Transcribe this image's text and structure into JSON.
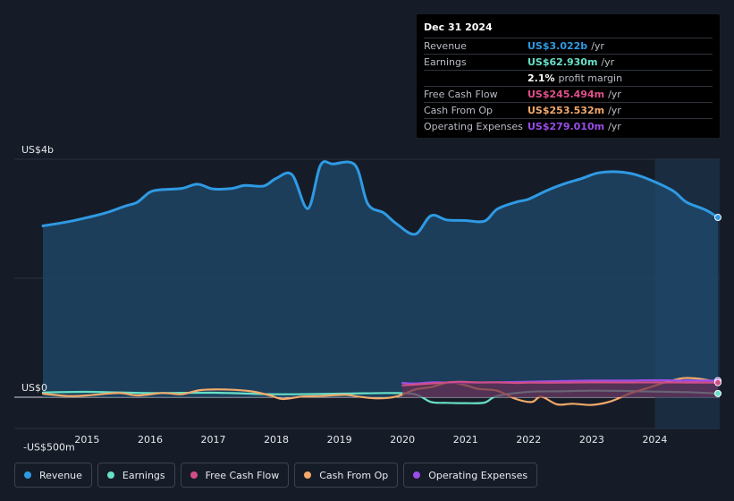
{
  "tooltip": {
    "date": "Dec 31 2024",
    "rows": [
      {
        "label": "Revenue",
        "value": "US$3.022b",
        "unit": "/yr",
        "color": "#2f9ae4"
      },
      {
        "label": "Earnings",
        "value": "US$62.930m",
        "unit": "/yr",
        "color": "#68e0c8"
      },
      {
        "label": "",
        "value": "2.1%",
        "unit": "profit margin",
        "color": "#ffffff"
      },
      {
        "label": "Free Cash Flow",
        "value": "US$245.494m",
        "unit": "/yr",
        "color": "#e0508a"
      },
      {
        "label": "Cash From Op",
        "value": "US$253.532m",
        "unit": "/yr",
        "color": "#f2a96a"
      },
      {
        "label": "Operating Expenses",
        "value": "US$279.010m",
        "unit": "/yr",
        "color": "#9a4de8"
      }
    ]
  },
  "legend": [
    {
      "label": "Revenue",
      "color": "#2f9ae4"
    },
    {
      "label": "Earnings",
      "color": "#68e0c8"
    },
    {
      "label": "Free Cash Flow",
      "color": "#d04e88"
    },
    {
      "label": "Cash From Op",
      "color": "#f2a96a"
    },
    {
      "label": "Operating Expenses",
      "color": "#9a4de8"
    }
  ],
  "chart_data": {
    "type": "area",
    "y_labels": [
      {
        "value": 4000,
        "text": "US$4b"
      },
      {
        "value": 0,
        "text": "US$0"
      },
      {
        "value": -500,
        "text": "-US$500m"
      }
    ],
    "ylim": [
      -500,
      4000
    ],
    "xlim": [
      2014.3,
      2025.0
    ],
    "x_ticks": [
      2015,
      2016,
      2017,
      2018,
      2019,
      2020,
      2021,
      2022,
      2023,
      2024
    ],
    "forecast_start": 2024.0,
    "series": [
      {
        "name": "Revenue",
        "color": "#2f9ae4",
        "fill": true,
        "points": [
          [
            2014.3,
            2880
          ],
          [
            2014.7,
            2950
          ],
          [
            2015.0,
            3020
          ],
          [
            2015.3,
            3100
          ],
          [
            2015.6,
            3210
          ],
          [
            2015.8,
            3280
          ],
          [
            2016.0,
            3450
          ],
          [
            2016.2,
            3490
          ],
          [
            2016.5,
            3510
          ],
          [
            2016.75,
            3580
          ],
          [
            2017.0,
            3500
          ],
          [
            2017.3,
            3510
          ],
          [
            2017.5,
            3560
          ],
          [
            2017.8,
            3550
          ],
          [
            2018.0,
            3680
          ],
          [
            2018.25,
            3740
          ],
          [
            2018.5,
            3170
          ],
          [
            2018.7,
            3900
          ],
          [
            2018.9,
            3920
          ],
          [
            2019.25,
            3900
          ],
          [
            2019.45,
            3250
          ],
          [
            2019.7,
            3100
          ],
          [
            2019.9,
            2920
          ],
          [
            2020.2,
            2740
          ],
          [
            2020.45,
            3050
          ],
          [
            2020.7,
            2980
          ],
          [
            2021.0,
            2970
          ],
          [
            2021.3,
            2960
          ],
          [
            2021.5,
            3160
          ],
          [
            2021.8,
            3280
          ],
          [
            2022.0,
            3330
          ],
          [
            2022.3,
            3480
          ],
          [
            2022.6,
            3600
          ],
          [
            2022.85,
            3680
          ],
          [
            2023.1,
            3770
          ],
          [
            2023.4,
            3790
          ],
          [
            2023.7,
            3740
          ],
          [
            2024.0,
            3620
          ],
          [
            2024.3,
            3460
          ],
          [
            2024.5,
            3280
          ],
          [
            2024.8,
            3150
          ],
          [
            2025.0,
            3022
          ]
        ]
      },
      {
        "name": "Earnings",
        "color": "#68e0c8",
        "fill": false,
        "points": [
          [
            2014.3,
            80
          ],
          [
            2015.0,
            90
          ],
          [
            2016.0,
            70
          ],
          [
            2017.0,
            75
          ],
          [
            2018.0,
            50
          ],
          [
            2019.0,
            60
          ],
          [
            2019.8,
            70
          ],
          [
            2020.2,
            50
          ],
          [
            2020.45,
            -80
          ],
          [
            2020.7,
            -95
          ],
          [
            2021.0,
            -100
          ],
          [
            2021.3,
            -90
          ],
          [
            2021.5,
            20
          ],
          [
            2022.0,
            90
          ],
          [
            2022.5,
            100
          ],
          [
            2023.0,
            110
          ],
          [
            2023.5,
            105
          ],
          [
            2024.0,
            95
          ],
          [
            2024.5,
            85
          ],
          [
            2025.0,
            62.93
          ]
        ]
      },
      {
        "name": "Cash From Op",
        "color": "#f2a96a",
        "fill": false,
        "points": [
          [
            2014.3,
            60
          ],
          [
            2014.7,
            20
          ],
          [
            2015.0,
            30
          ],
          [
            2015.5,
            70
          ],
          [
            2015.8,
            30
          ],
          [
            2016.2,
            70
          ],
          [
            2016.5,
            50
          ],
          [
            2016.8,
            120
          ],
          [
            2017.2,
            130
          ],
          [
            2017.6,
            100
          ],
          [
            2017.9,
            30
          ],
          [
            2018.1,
            -30
          ],
          [
            2018.4,
            10
          ],
          [
            2018.7,
            20
          ],
          [
            2019.1,
            40
          ],
          [
            2019.3,
            10
          ],
          [
            2019.6,
            -20
          ],
          [
            2019.9,
            10
          ],
          [
            2020.2,
            130
          ],
          [
            2020.45,
            170
          ],
          [
            2020.75,
            250
          ],
          [
            2021.0,
            200
          ],
          [
            2021.2,
            140
          ],
          [
            2021.5,
            110
          ],
          [
            2021.8,
            -30
          ],
          [
            2022.05,
            -80
          ],
          [
            2022.2,
            10
          ],
          [
            2022.45,
            -120
          ],
          [
            2022.7,
            -110
          ],
          [
            2023.0,
            -130
          ],
          [
            2023.3,
            -70
          ],
          [
            2023.6,
            60
          ],
          [
            2023.9,
            160
          ],
          [
            2024.2,
            260
          ],
          [
            2024.45,
            320
          ],
          [
            2024.7,
            310
          ],
          [
            2025.0,
            253.5
          ]
        ]
      },
      {
        "name": "Operating Expenses",
        "color": "#9a4de8",
        "fill": false,
        "points": [
          [
            2020.0,
            240
          ],
          [
            2020.2,
            230
          ],
          [
            2020.5,
            250
          ],
          [
            2021.0,
            240
          ],
          [
            2021.5,
            250
          ],
          [
            2022.0,
            260
          ],
          [
            2022.5,
            270
          ],
          [
            2023.0,
            280
          ],
          [
            2023.5,
            280
          ],
          [
            2024.0,
            285
          ],
          [
            2024.5,
            280
          ],
          [
            2025.0,
            279
          ]
        ]
      },
      {
        "name": "Free Cash Flow",
        "color": "#d04e88",
        "fill": true,
        "points": [
          [
            2020.0,
            200
          ],
          [
            2020.3,
            220
          ],
          [
            2020.6,
            240
          ],
          [
            2020.9,
            260
          ],
          [
            2021.2,
            250
          ],
          [
            2021.5,
            250
          ],
          [
            2021.8,
            240
          ],
          [
            2022.0,
            245
          ],
          [
            2022.5,
            245
          ],
          [
            2023.0,
            250
          ],
          [
            2023.5,
            248
          ],
          [
            2024.0,
            250
          ],
          [
            2024.5,
            247
          ],
          [
            2025.0,
            245.5
          ]
        ]
      }
    ]
  }
}
